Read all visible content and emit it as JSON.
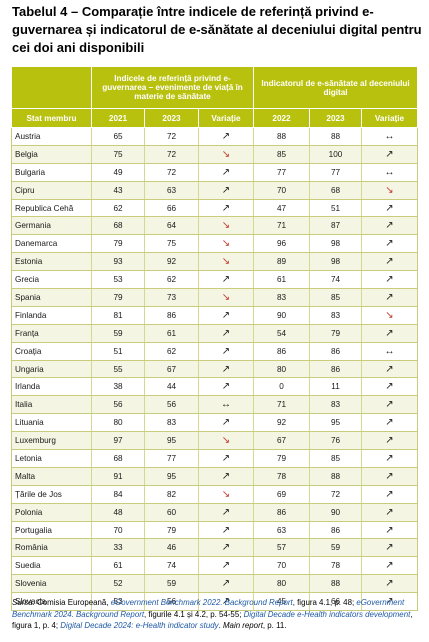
{
  "title": "Tabelul 4 – Comparație între indicele de referință privind e-guvernarea și indicatorul de e-sănătate al deceniului digital pentru cei doi ani disponibili",
  "headers": {
    "group1": "Indicele de referință privind e-guvernarea – evenimente de viață în materie de sănătate",
    "group2": "Indicatorul de e-sănătate al deceniului digital",
    "member": "Stat membru",
    "y2021": "2021",
    "y2023a": "2023",
    "var1": "Variație",
    "y2022": "2022",
    "y2023b": "2023",
    "var2": "Variație"
  },
  "rows": [
    {
      "country": "Austria",
      "a2021": "65",
      "a2023": "72",
      "v1": "up",
      "b2022": "88",
      "b2023": "88",
      "v2": "eq"
    },
    {
      "country": "Belgia",
      "a2021": "75",
      "a2023": "72",
      "v1": "down",
      "b2022": "85",
      "b2023": "100",
      "v2": "up"
    },
    {
      "country": "Bulgaria",
      "a2021": "49",
      "a2023": "72",
      "v1": "up",
      "b2022": "77",
      "b2023": "77",
      "v2": "eq"
    },
    {
      "country": "Cipru",
      "a2021": "43",
      "a2023": "63",
      "v1": "up",
      "b2022": "70",
      "b2023": "68",
      "v2": "down"
    },
    {
      "country": "Republica Cehă",
      "a2021": "62",
      "a2023": "66",
      "v1": "up",
      "b2022": "47",
      "b2023": "51",
      "v2": "up"
    },
    {
      "country": "Germania",
      "a2021": "68",
      "a2023": "64",
      "v1": "down",
      "b2022": "71",
      "b2023": "87",
      "v2": "up"
    },
    {
      "country": "Danemarca",
      "a2021": "79",
      "a2023": "75",
      "v1": "down",
      "b2022": "96",
      "b2023": "98",
      "v2": "up"
    },
    {
      "country": "Estonia",
      "a2021": "93",
      "a2023": "92",
      "v1": "down",
      "b2022": "89",
      "b2023": "98",
      "v2": "up"
    },
    {
      "country": "Grecia",
      "a2021": "53",
      "a2023": "62",
      "v1": "up",
      "b2022": "61",
      "b2023": "74",
      "v2": "up"
    },
    {
      "country": "Spania",
      "a2021": "79",
      "a2023": "73",
      "v1": "down",
      "b2022": "83",
      "b2023": "85",
      "v2": "up"
    },
    {
      "country": "Finlanda",
      "a2021": "81",
      "a2023": "86",
      "v1": "up",
      "b2022": "90",
      "b2023": "83",
      "v2": "down"
    },
    {
      "country": "Franța",
      "a2021": "59",
      "a2023": "61",
      "v1": "up",
      "b2022": "54",
      "b2023": "79",
      "v2": "up"
    },
    {
      "country": "Croația",
      "a2021": "51",
      "a2023": "62",
      "v1": "up",
      "b2022": "86",
      "b2023": "86",
      "v2": "eq"
    },
    {
      "country": "Ungaria",
      "a2021": "55",
      "a2023": "67",
      "v1": "up",
      "b2022": "80",
      "b2023": "86",
      "v2": "up"
    },
    {
      "country": "Irlanda",
      "a2021": "38",
      "a2023": "44",
      "v1": "up",
      "b2022": "0",
      "b2023": "11",
      "v2": "up"
    },
    {
      "country": "Italia",
      "a2021": "56",
      "a2023": "56",
      "v1": "eq",
      "b2022": "71",
      "b2023": "83",
      "v2": "up"
    },
    {
      "country": "Lituania",
      "a2021": "80",
      "a2023": "83",
      "v1": "up",
      "b2022": "92",
      "b2023": "95",
      "v2": "up"
    },
    {
      "country": "Luxemburg",
      "a2021": "97",
      "a2023": "95",
      "v1": "down",
      "b2022": "67",
      "b2023": "76",
      "v2": "up"
    },
    {
      "country": "Letonia",
      "a2021": "68",
      "a2023": "77",
      "v1": "up",
      "b2022": "79",
      "b2023": "85",
      "v2": "up"
    },
    {
      "country": "Malta",
      "a2021": "91",
      "a2023": "95",
      "v1": "up",
      "b2022": "78",
      "b2023": "88",
      "v2": "up"
    },
    {
      "country": "Țările de Jos",
      "a2021": "84",
      "a2023": "82",
      "v1": "down",
      "b2022": "69",
      "b2023": "72",
      "v2": "up"
    },
    {
      "country": "Polonia",
      "a2021": "48",
      "a2023": "60",
      "v1": "up",
      "b2022": "86",
      "b2023": "90",
      "v2": "up"
    },
    {
      "country": "Portugalia",
      "a2021": "70",
      "a2023": "79",
      "v1": "up",
      "b2022": "63",
      "b2023": "86",
      "v2": "up"
    },
    {
      "country": "România",
      "a2021": "33",
      "a2023": "46",
      "v1": "up",
      "b2022": "57",
      "b2023": "59",
      "v2": "up"
    },
    {
      "country": "Suedia",
      "a2021": "61",
      "a2023": "74",
      "v1": "up",
      "b2022": "70",
      "b2023": "78",
      "v2": "up"
    },
    {
      "country": "Slovenia",
      "a2021": "52",
      "a2023": "59",
      "v1": "up",
      "b2022": "80",
      "b2023": "88",
      "v2": "up"
    },
    {
      "country": "Slovacia",
      "a2021": "53",
      "a2023": "56",
      "v1": "up",
      "b2022": "45",
      "b2023": "66",
      "v2": "up"
    }
  ],
  "arrows": {
    "up": "↗",
    "down": "↘",
    "eq": "↔"
  },
  "colors": {
    "header_bg": "#b9c10f",
    "down_arrow": "#c0392b",
    "link": "#1f5aa6"
  },
  "source": {
    "lead": "Sursa:",
    "p1": " Comisia Europeană, ",
    "i1": "eGovernment Benchmark 2022. Background Report",
    "p2": ", figura 4.1, p. 48; ",
    "i2": "eGovernment Benchmark 2024. Background Report",
    "p3": ", figurile 4.1 și 4.2, p. 54-55; ",
    "i3": "Digital Decade e-Health indicators development",
    "p4": ", figura 1, p. 4; ",
    "i4": "Digital Decade 2024: e-Health indicator study",
    "p5": ". ",
    "i5": "Main report",
    "p6": ", p. 11."
  }
}
